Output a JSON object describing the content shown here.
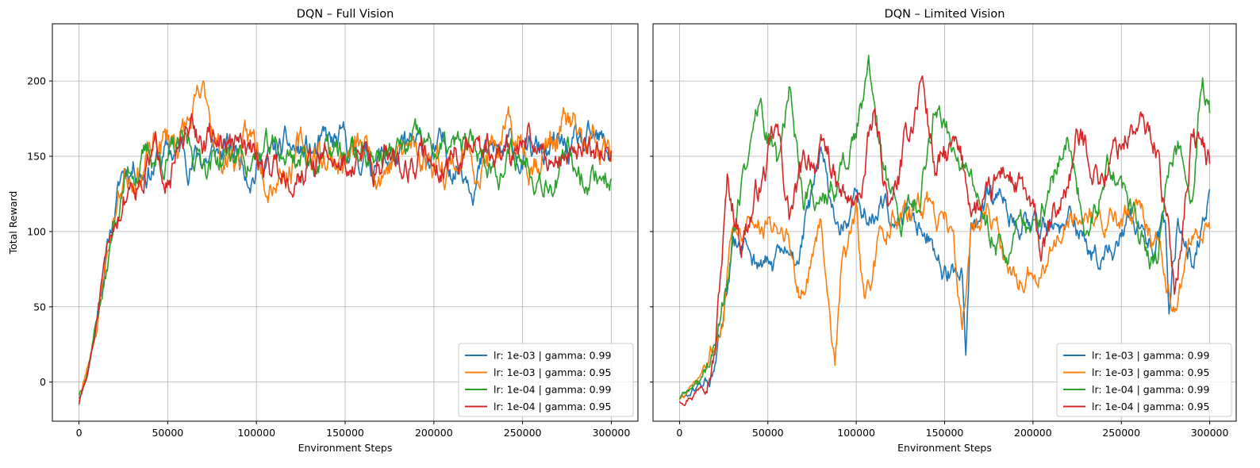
{
  "chart_data": [
    {
      "type": "line",
      "title": "DQN – Full Vision",
      "xlabel": "Environment Steps",
      "ylabel": "Total Reward",
      "xlim": [
        -15000,
        315000
      ],
      "ylim": [
        -26,
        238
      ],
      "xticks": [
        0,
        50000,
        100000,
        150000,
        200000,
        250000,
        300000
      ],
      "yticks": [
        0,
        50,
        100,
        150,
        200
      ],
      "grid": true,
      "legend_position": "lower-right",
      "series": [
        {
          "name": "lr: 1e-03 | gamma: 0.99",
          "color": "#1f77b4",
          "seed": 11,
          "noise": 13,
          "keypoints": [
            [
              0,
              -10
            ],
            [
              5000,
              8
            ],
            [
              10000,
              45
            ],
            [
              15000,
              85
            ],
            [
              20000,
              115
            ],
            [
              25000,
              140
            ],
            [
              30000,
              148
            ],
            [
              40000,
              150
            ],
            [
              60000,
              152
            ],
            [
              100000,
              150
            ],
            [
              150000,
              150
            ],
            [
              200000,
              148
            ],
            [
              250000,
              150
            ],
            [
              300000,
              148
            ]
          ]
        },
        {
          "name": "lr: 1e-03 | gamma: 0.95",
          "color": "#ff7f0e",
          "seed": 23,
          "noise": 15,
          "keypoints": [
            [
              0,
              -12
            ],
            [
              5000,
              10
            ],
            [
              10000,
              40
            ],
            [
              15000,
              80
            ],
            [
              20000,
              112
            ],
            [
              25000,
              138
            ],
            [
              30000,
              150
            ],
            [
              40000,
              150
            ],
            [
              73000,
              180
            ],
            [
              80000,
              150
            ],
            [
              100000,
              155
            ],
            [
              150000,
              150
            ],
            [
              200000,
              152
            ],
            [
              250000,
              153
            ],
            [
              275000,
              170
            ],
            [
              285000,
              150
            ],
            [
              300000,
              145
            ]
          ]
        },
        {
          "name": "lr: 1e-04 | gamma: 0.99",
          "color": "#2ca02c",
          "seed": 37,
          "noise": 12,
          "keypoints": [
            [
              0,
              -8
            ],
            [
              5000,
              10
            ],
            [
              10000,
              45
            ],
            [
              15000,
              70
            ],
            [
              20000,
              105
            ],
            [
              25000,
              130
            ],
            [
              30000,
              145
            ],
            [
              40000,
              150
            ],
            [
              100000,
              150
            ],
            [
              150000,
              150
            ],
            [
              200000,
              152
            ],
            [
              250000,
              148
            ],
            [
              300000,
              140
            ]
          ]
        },
        {
          "name": "lr: 1e-04 | gamma: 0.95",
          "color": "#d62728",
          "seed": 51,
          "noise": 13,
          "keypoints": [
            [
              0,
              -14
            ],
            [
              5000,
              5
            ],
            [
              10000,
              38
            ],
            [
              15000,
              75
            ],
            [
              20000,
              105
            ],
            [
              25000,
              125
            ],
            [
              30000,
              140
            ],
            [
              40000,
              150
            ],
            [
              80000,
              160
            ],
            [
              100000,
              145
            ],
            [
              150000,
              148
            ],
            [
              200000,
              150
            ],
            [
              250000,
              152
            ],
            [
              300000,
              160
            ]
          ]
        }
      ]
    },
    {
      "type": "line",
      "title": "DQN – Limited Vision",
      "xlabel": "Environment Steps",
      "ylabel": "",
      "xlim": [
        -15000,
        315000
      ],
      "ylim": [
        -26,
        238
      ],
      "xticks": [
        0,
        50000,
        100000,
        150000,
        200000,
        250000,
        300000
      ],
      "yticks": [
        0,
        50,
        100,
        150,
        200
      ],
      "grid": true,
      "legend_position": "lower-right",
      "series": [
        {
          "name": "lr: 1e-03 | gamma: 0.99",
          "color": "#1f77b4",
          "seed": 61,
          "noise": 11,
          "keypoints": [
            [
              0,
              -11
            ],
            [
              10000,
              -5
            ],
            [
              20000,
              5
            ],
            [
              25000,
              40
            ],
            [
              30000,
              80
            ],
            [
              40000,
              85
            ],
            [
              50000,
              75
            ],
            [
              65000,
              80
            ],
            [
              80000,
              140
            ],
            [
              90000,
              100
            ],
            [
              100000,
              110
            ],
            [
              120000,
              110
            ],
            [
              140000,
              105
            ],
            [
              150000,
              75
            ],
            [
              160000,
              70
            ],
            [
              162000,
              5
            ],
            [
              165000,
              90
            ],
            [
              180000,
              120
            ],
            [
              200000,
              110
            ],
            [
              220000,
              100
            ],
            [
              240000,
              80
            ],
            [
              260000,
              105
            ],
            [
              275000,
              100
            ],
            [
              277000,
              45
            ],
            [
              282000,
              110
            ],
            [
              290000,
              90
            ],
            [
              300000,
              125
            ]
          ]
        },
        {
          "name": "lr: 1e-03 | gamma: 0.95",
          "color": "#ff7f0e",
          "seed": 73,
          "noise": 11,
          "keypoints": [
            [
              0,
              -11
            ],
            [
              10000,
              -3
            ],
            [
              20000,
              20
            ],
            [
              30000,
              100
            ],
            [
              40000,
              110
            ],
            [
              50000,
              100
            ],
            [
              60000,
              110
            ],
            [
              68000,
              60
            ],
            [
              80000,
              100
            ],
            [
              88000,
              20
            ],
            [
              92000,
              90
            ],
            [
              100000,
              100
            ],
            [
              105000,
              40
            ],
            [
              112000,
              80
            ],
            [
              120000,
              110
            ],
            [
              140000,
              115
            ],
            [
              155000,
              100
            ],
            [
              160000,
              30
            ],
            [
              165000,
              100
            ],
            [
              175000,
              110
            ],
            [
              185000,
              70
            ],
            [
              200000,
              70
            ],
            [
              220000,
              110
            ],
            [
              240000,
              100
            ],
            [
              260000,
              110
            ],
            [
              270000,
              90
            ],
            [
              280000,
              50
            ],
            [
              290000,
              90
            ],
            [
              300000,
              105
            ]
          ]
        },
        {
          "name": "lr: 1e-04 | gamma: 0.99",
          "color": "#2ca02c",
          "seed": 89,
          "noise": 12,
          "keypoints": [
            [
              0,
              -10
            ],
            [
              10000,
              -3
            ],
            [
              20000,
              20
            ],
            [
              30000,
              100
            ],
            [
              35000,
              130
            ],
            [
              45000,
              185
            ],
            [
              55000,
              140
            ],
            [
              62000,
              198
            ],
            [
              70000,
              130
            ],
            [
              85000,
              120
            ],
            [
              95000,
              150
            ],
            [
              107000,
              200
            ],
            [
              115000,
              140
            ],
            [
              125000,
              100
            ],
            [
              135000,
              120
            ],
            [
              145000,
              190
            ],
            [
              160000,
              150
            ],
            [
              170000,
              110
            ],
            [
              180000,
              100
            ],
            [
              190000,
              95
            ],
            [
              200000,
              100
            ],
            [
              210000,
              130
            ],
            [
              220000,
              160
            ],
            [
              230000,
              110
            ],
            [
              245000,
              140
            ],
            [
              260000,
              90
            ],
            [
              270000,
              80
            ],
            [
              280000,
              160
            ],
            [
              290000,
              140
            ],
            [
              296000,
              222
            ],
            [
              300000,
              190
            ]
          ]
        },
        {
          "name": "lr: 1e-04 | gamma: 0.95",
          "color": "#d62728",
          "seed": 97,
          "noise": 13,
          "keypoints": [
            [
              0,
              -12
            ],
            [
              10000,
              -3
            ],
            [
              20000,
              30
            ],
            [
              27000,
              130
            ],
            [
              35000,
              100
            ],
            [
              45000,
              130
            ],
            [
              55000,
              160
            ],
            [
              62000,
              110
            ],
            [
              75000,
              150
            ],
            [
              85000,
              145
            ],
            [
              90000,
              120
            ],
            [
              100000,
              110
            ],
            [
              110000,
              170
            ],
            [
              120000,
              110
            ],
            [
              130000,
              160
            ],
            [
              137000,
              205
            ],
            [
              145000,
              140
            ],
            [
              155000,
              150
            ],
            [
              165000,
              120
            ],
            [
              175000,
              110
            ],
            [
              185000,
              140
            ],
            [
              195000,
              120
            ],
            [
              205000,
              80
            ],
            [
              215000,
              110
            ],
            [
              225000,
              160
            ],
            [
              240000,
              140
            ],
            [
              255000,
              170
            ],
            [
              270000,
              160
            ],
            [
              280000,
              60
            ],
            [
              290000,
              170
            ],
            [
              300000,
              145
            ]
          ]
        }
      ]
    }
  ]
}
